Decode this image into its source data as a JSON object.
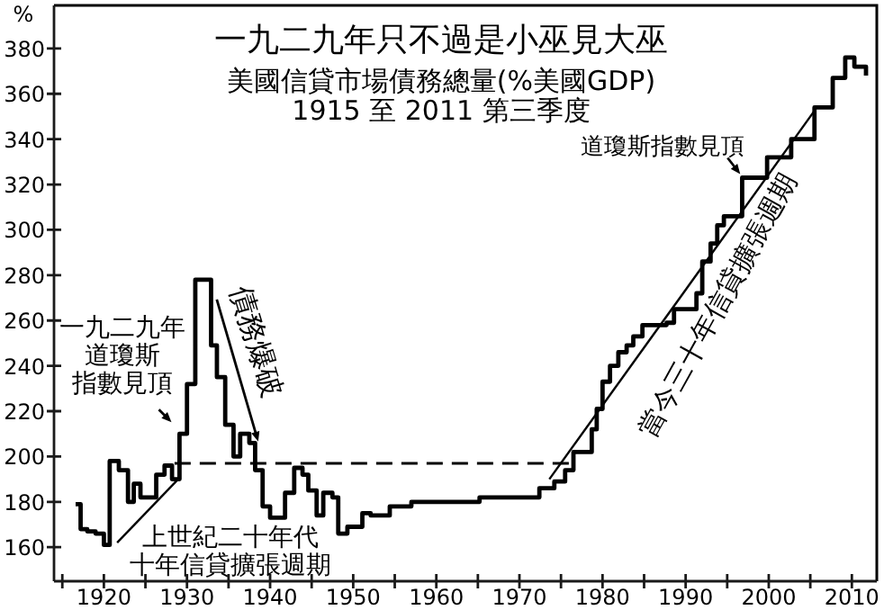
{
  "chart_data": {
    "type": "step",
    "title": "一九二九年只不過是小巫見大巫",
    "subtitle": "美國信貸市場債務總量(%美國GDP)\n1915 至 2011 第三季度",
    "ylabel": "%",
    "xlim": [
      1914,
      2013
    ],
    "ylim": [
      145,
      399
    ],
    "xticks": [
      {
        "value": 1915,
        "label": null
      },
      1920,
      {
        "value": 1925,
        "label": null
      },
      1930,
      {
        "value": 1935,
        "label": null
      },
      1940,
      {
        "value": 1945,
        "label": null
      },
      1950,
      {
        "value": 1955,
        "label": null
      },
      1960,
      {
        "value": 1965,
        "label": null
      },
      1970,
      {
        "value": 1975,
        "label": null
      },
      1980,
      {
        "value": 1985,
        "label": null
      },
      1990,
      {
        "value": 1995,
        "label": null
      },
      2000,
      {
        "value": 2005,
        "label": null
      },
      2010
    ],
    "yticks": [
      160,
      180,
      200,
      220,
      240,
      260,
      280,
      300,
      320,
      340,
      360,
      380
    ],
    "series": [
      {
        "type": "step",
        "color": "#000000",
        "x": [
          1916.6,
          1917.2,
          1918,
          1919,
          1920,
          1920.7,
          1921.8,
          1922.9,
          1923.6,
          1924.4,
          1926.3,
          1927.3,
          1928.2,
          1929.1,
          1930,
          1931,
          1932.9,
          1933.6,
          1934.6,
          1935.6,
          1936.4,
          1937.5,
          1938.2,
          1939.1,
          1940,
          1941.8,
          1942.9,
          1943.9,
          1944.6,
          1945.6,
          1946.4,
          1947.5,
          1948.2,
          1949.3,
          1951.1,
          1952.1,
          1954.4,
          1957,
          1965.2,
          1972.4,
          1974.2,
          1975.5,
          1976.5,
          1978.7,
          1979.3,
          1980,
          1980.9,
          1981.9,
          1982.9,
          1983.7,
          1984.8,
          1987.7,
          1988.6,
          1991.3,
          1992,
          1993,
          1993.8,
          1994.6,
          1996.8,
          1999.8,
          2002.7,
          2005.5,
          2007.7,
          2009.2,
          2010.3,
          2011.7
        ],
        "values": [
          179,
          168,
          167,
          166,
          161,
          198,
          194,
          180,
          188,
          182,
          192,
          196,
          190,
          210,
          232,
          278,
          249,
          235,
          214,
          200,
          210,
          206,
          194,
          178,
          173,
          184,
          195,
          192,
          185,
          174,
          184,
          182,
          166,
          169,
          175,
          174,
          178,
          180,
          182,
          186,
          189,
          194,
          202,
          212,
          221,
          233,
          240,
          246,
          249,
          253,
          258,
          259,
          265,
          272,
          286,
          294,
          302,
          306,
          323,
          332,
          340,
          354,
          367,
          376,
          372,
          368
        ]
      },
      {
        "type": "line",
        "color": "#000000",
        "x": [
          1921.6,
          1929.2
        ],
        "values": [
          162,
          191
        ]
      },
      {
        "type": "line",
        "color": "#000000",
        "x": [
          1973.6,
          2005.4
        ],
        "values": [
          190,
          352
        ]
      },
      {
        "type": "line",
        "color": "#000000",
        "line_style": "dashed",
        "x": [
          1928.5,
          1977
        ],
        "values": [
          197,
          197
        ]
      }
    ],
    "annotations": [
      {
        "text": "一九二九年道瓊斯指數見頂",
        "x": 1929,
        "y": 212
      },
      {
        "text": "債務爆破",
        "x": 1939,
        "y": 205
      },
      "上世紀二十年代十年信貸擴張週期",
      "當今三十年信貸擴張週期",
      {
        "text": "道瓊斯指數見頂",
        "x": 1997,
        "y": 323
      }
    ]
  }
}
